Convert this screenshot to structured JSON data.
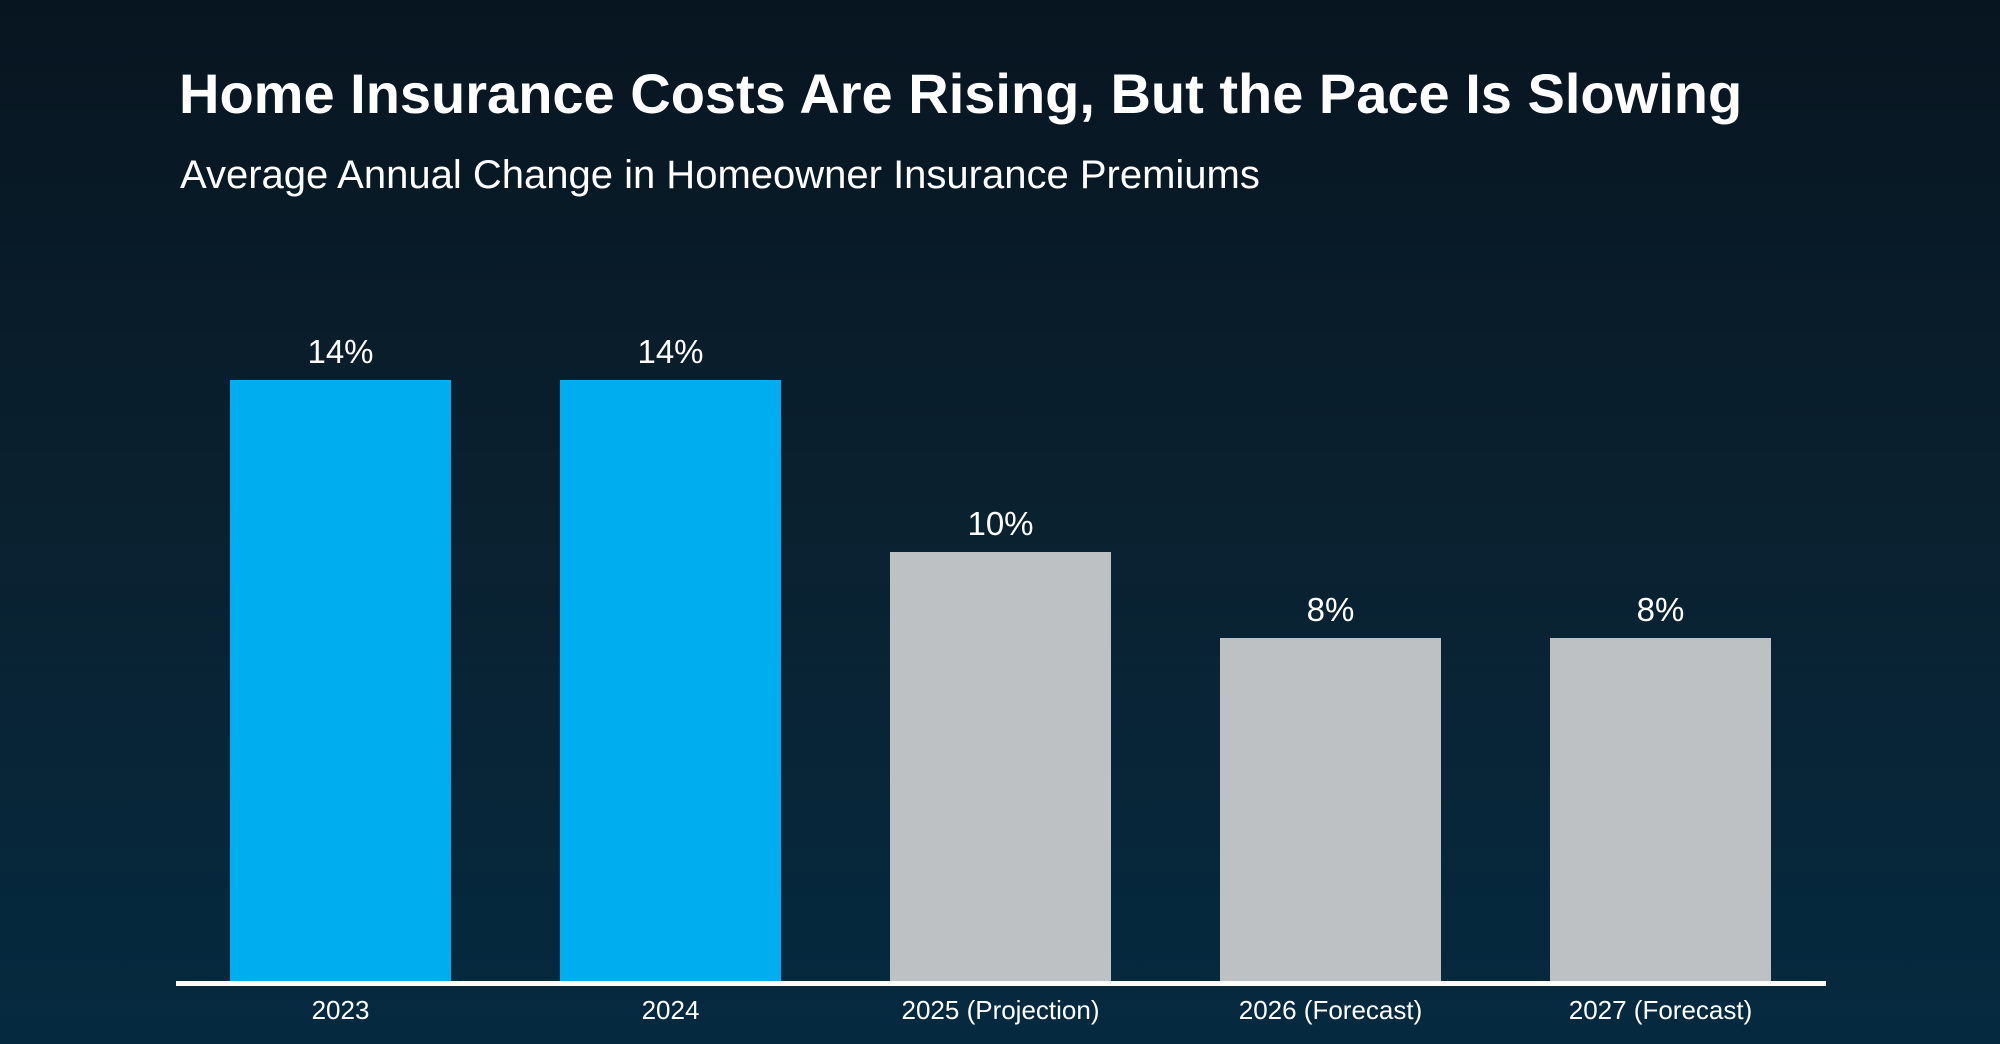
{
  "page": {
    "title": "Home Insurance Costs Are Rising, But the Pace Is Slowing",
    "subtitle": "Average Annual Change in Homeowner Insurance Premiums"
  },
  "colors": {
    "background_top": "#071520",
    "background_middle": "#0a2130",
    "background_bottom": "#052a40",
    "bar_highlight": "#00aeef",
    "bar_muted": "#bdc1c4",
    "axis_line": "#ffffff",
    "text": "#ffffff"
  },
  "chart_data": {
    "type": "bar",
    "title": "Home Insurance Costs Are Rising, But the Pace Is Slowing",
    "subtitle": "Average Annual Change in Homeowner Insurance Premiums",
    "categories": [
      "2023",
      "2024",
      "2025 (Projection)",
      "2026 (Forecast)",
      "2027 (Forecast)"
    ],
    "values": [
      14,
      14,
      10,
      8,
      8
    ],
    "value_labels": [
      "14%",
      "14%",
      "10%",
      "8%",
      "8%"
    ],
    "unit": "percent annual change",
    "xlabel": "",
    "ylabel": "",
    "ylim": [
      0,
      15
    ],
    "grid": false,
    "legend": false,
    "bar_colors": [
      "#00aeef",
      "#00aeef",
      "#bdc1c4",
      "#bdc1c4",
      "#bdc1c4"
    ]
  }
}
